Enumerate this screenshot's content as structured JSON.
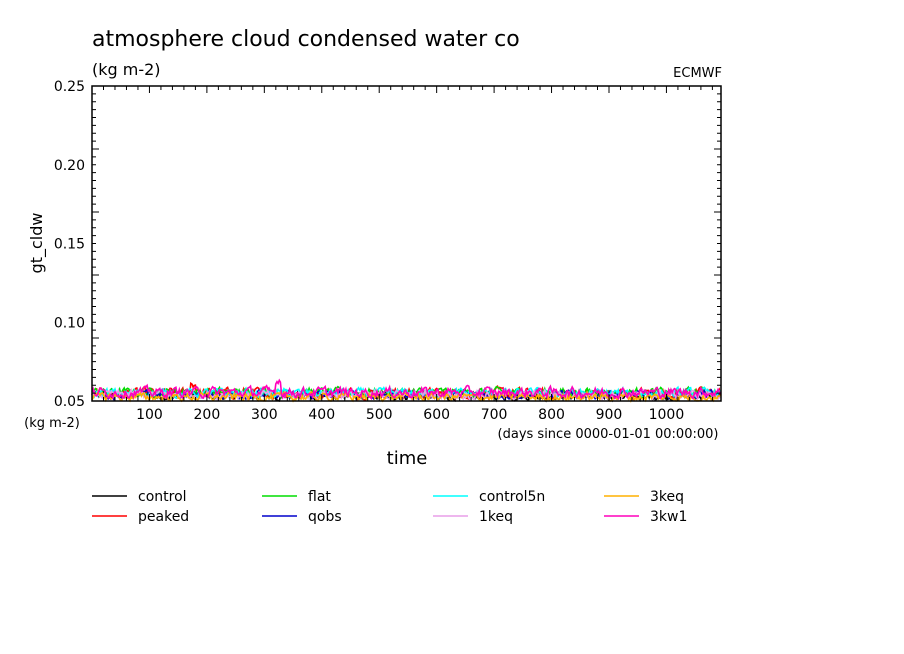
{
  "chart_data": {
    "type": "line",
    "title": "atmosphere cloud condensed water co",
    "units": "(kg m-2)",
    "source": "ECMWF",
    "ylabel": "gt_cldw",
    "y_unit_label": "(kg m-2)",
    "xlabel": "time",
    "x_unit_label": "(days since 0000-01-01 00:00:00)",
    "xlim": [
      0,
      1095
    ],
    "ylim": [
      0.05,
      0.25
    ],
    "xticks": [
      "100",
      "200",
      "300",
      "400",
      "500",
      "600",
      "700",
      "800",
      "900",
      "1000"
    ],
    "yticks": [
      "0.05",
      "0.10",
      "0.15",
      "0.20",
      "0.25"
    ],
    "grid": false,
    "legend_position": "bottom",
    "series": [
      {
        "name": "control",
        "color": "#000000",
        "baseline": 0.0535,
        "noise": 0.0022
      },
      {
        "name": "peaked",
        "color": "#ff0000",
        "baseline": 0.055,
        "noise": 0.0025
      },
      {
        "name": "flat",
        "color": "#00dd00",
        "baseline": 0.0555,
        "noise": 0.0022
      },
      {
        "name": "qobs",
        "color": "#0000cc",
        "baseline": 0.054,
        "noise": 0.002
      },
      {
        "name": "control5n",
        "color": "#00ffff",
        "baseline": 0.055,
        "noise": 0.0022
      },
      {
        "name": "1keq",
        "color": "#e89ee8",
        "baseline": 0.054,
        "noise": 0.0022
      },
      {
        "name": "3keq",
        "color": "#ffb000",
        "baseline": 0.0525,
        "noise": 0.002
      },
      {
        "name": "3kw1",
        "color": "#ff00bb",
        "baseline": 0.0555,
        "noise": 0.0025
      }
    ]
  }
}
